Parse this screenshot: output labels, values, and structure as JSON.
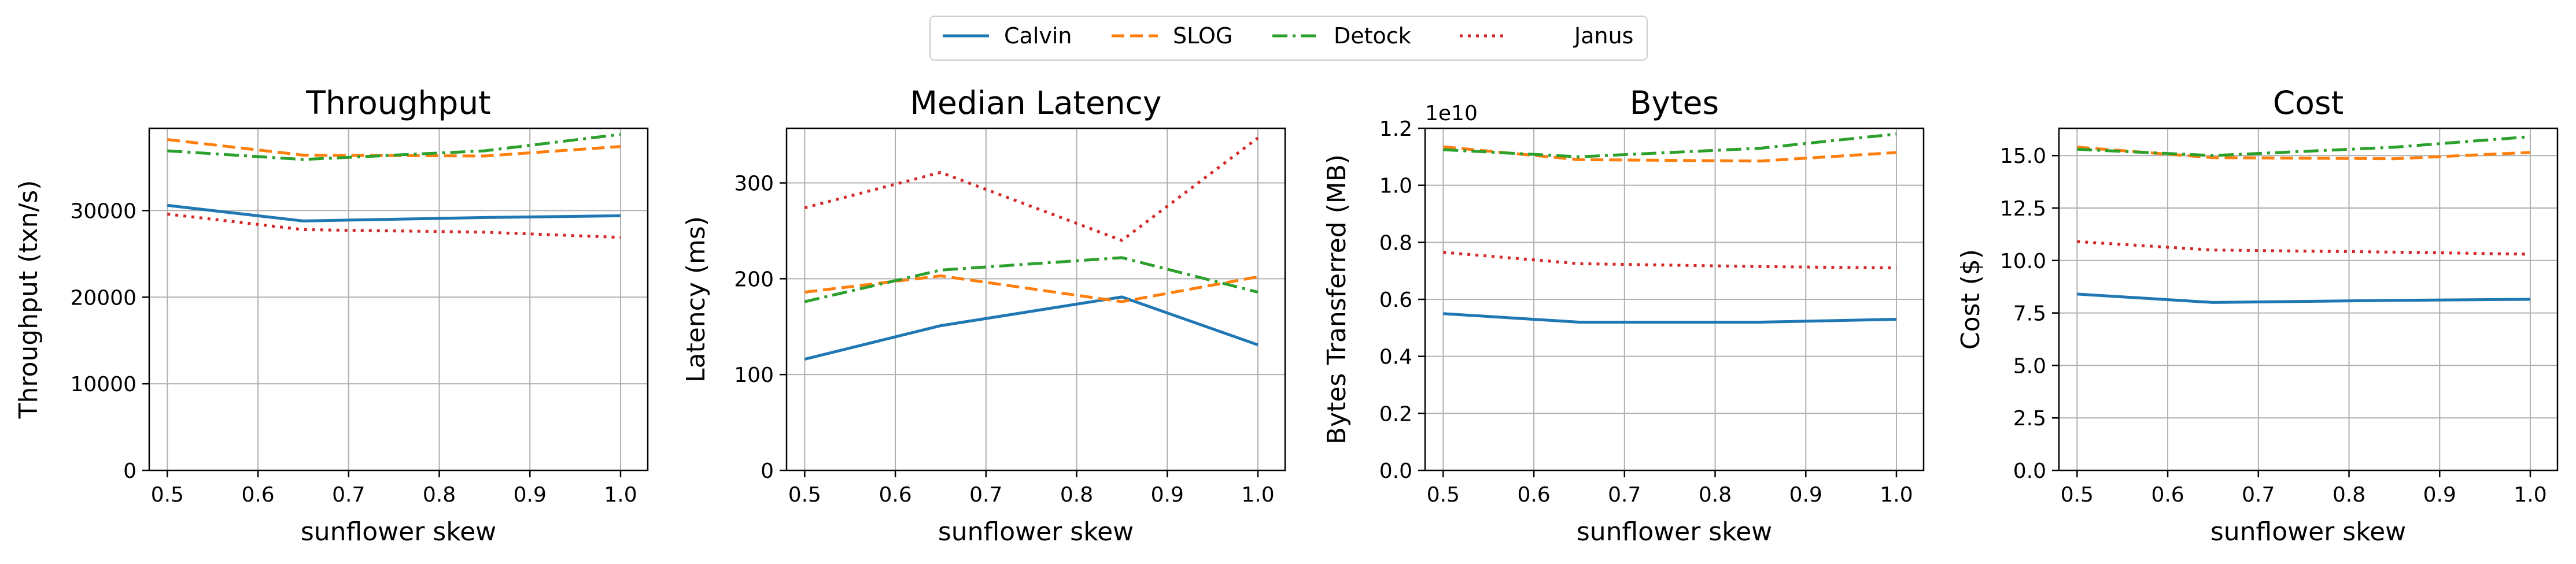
{
  "figure": {
    "legend": [
      {
        "name": "Calvin",
        "color": "#1f77b4",
        "dash": "solid"
      },
      {
        "name": "SLOG",
        "color": "#ff7f0e",
        "dash": "dashed"
      },
      {
        "name": "Detock",
        "color": "#2ca02c",
        "dash": "dashdot"
      },
      {
        "name": "Janus",
        "color": "#d62728",
        "dash": "dotted"
      }
    ]
  },
  "chart_data": [
    {
      "type": "line",
      "title": "Throughput",
      "xlabel": "sunflower skew",
      "ylabel": "Throughput (txn/s)",
      "xlim": [
        0.48,
        1.03
      ],
      "ylim": [
        0,
        39500
      ],
      "xticks": [
        0.5,
        0.6,
        0.7,
        0.8,
        0.9,
        1.0
      ],
      "xtick_labels": [
        "0.5",
        "0.6",
        "0.7",
        "0.8",
        "0.9",
        "1.0"
      ],
      "yticks": [
        0,
        10000,
        20000,
        30000
      ],
      "ytick_labels": [
        "0",
        "10000",
        "20000",
        "30000"
      ],
      "offset_text": "",
      "grid": true,
      "x": [
        0.5,
        0.65,
        0.85,
        1.0
      ],
      "series": [
        {
          "name": "Calvin",
          "values": [
            30600,
            28800,
            29200,
            29400
          ]
        },
        {
          "name": "SLOG",
          "values": [
            38200,
            36400,
            36300,
            37400
          ]
        },
        {
          "name": "Detock",
          "values": [
            36900,
            35900,
            36900,
            38800
          ]
        },
        {
          "name": "Janus",
          "values": [
            29600,
            27800,
            27500,
            26900
          ]
        }
      ]
    },
    {
      "type": "line",
      "title": "Median Latency",
      "xlabel": "sunflower skew",
      "ylabel": "Latency (ms)",
      "xlim": [
        0.48,
        1.03
      ],
      "ylim": [
        0,
        357
      ],
      "xticks": [
        0.5,
        0.6,
        0.7,
        0.8,
        0.9,
        1.0
      ],
      "xtick_labels": [
        "0.5",
        "0.6",
        "0.7",
        "0.8",
        "0.9",
        "1.0"
      ],
      "yticks": [
        0,
        100,
        200,
        300
      ],
      "ytick_labels": [
        "0",
        "100",
        "200",
        "300"
      ],
      "offset_text": "",
      "grid": true,
      "x": [
        0.5,
        0.65,
        0.85,
        1.0
      ],
      "series": [
        {
          "name": "Calvin",
          "values": [
            116,
            151,
            181,
            131
          ]
        },
        {
          "name": "SLOG",
          "values": [
            186,
            203,
            176,
            202
          ]
        },
        {
          "name": "Detock",
          "values": [
            176,
            209,
            222,
            186
          ]
        },
        {
          "name": "Janus",
          "values": [
            274,
            311,
            240,
            347
          ]
        }
      ]
    },
    {
      "type": "line",
      "title": "Bytes",
      "xlabel": "sunflower skew",
      "ylabel": "Bytes Transferred (MB)",
      "xlim": [
        0.48,
        1.03
      ],
      "ylim": [
        0,
        1.2
      ],
      "xticks": [
        0.5,
        0.6,
        0.7,
        0.8,
        0.9,
        1.0
      ],
      "xtick_labels": [
        "0.5",
        "0.6",
        "0.7",
        "0.8",
        "0.9",
        "1.0"
      ],
      "yticks": [
        0,
        0.2,
        0.4,
        0.6,
        0.8,
        1.0,
        1.2
      ],
      "ytick_labels": [
        "0.0",
        "0.2",
        "0.4",
        "0.6",
        "0.8",
        "1.0",
        "1.2"
      ],
      "offset_text": "1e10",
      "grid": true,
      "x": [
        0.5,
        0.65,
        0.85,
        1.0
      ],
      "series": [
        {
          "name": "Calvin",
          "values": [
            0.55,
            0.52,
            0.52,
            0.53
          ]
        },
        {
          "name": "SLOG",
          "values": [
            1.135,
            1.09,
            1.085,
            1.115
          ]
        },
        {
          "name": "Detock",
          "values": [
            1.125,
            1.1,
            1.13,
            1.18
          ]
        },
        {
          "name": "Janus",
          "values": [
            0.765,
            0.725,
            0.715,
            0.71
          ]
        }
      ]
    },
    {
      "type": "line",
      "title": "Cost",
      "xlabel": "sunflower skew",
      "ylabel": "Cost ($)",
      "xlim": [
        0.48,
        1.03
      ],
      "ylim": [
        0,
        16.3
      ],
      "xticks": [
        0.5,
        0.6,
        0.7,
        0.8,
        0.9,
        1.0
      ],
      "xtick_labels": [
        "0.5",
        "0.6",
        "0.7",
        "0.8",
        "0.9",
        "1.0"
      ],
      "yticks": [
        0,
        2.5,
        5.0,
        7.5,
        10.0,
        12.5,
        15.0
      ],
      "ytick_labels": [
        "0.0",
        "2.5",
        "5.0",
        "7.5",
        "10.0",
        "12.5",
        "15.0"
      ],
      "offset_text": "",
      "grid": true,
      "x": [
        0.5,
        0.65,
        0.85,
        1.0
      ],
      "series": [
        {
          "name": "Calvin",
          "values": [
            8.4,
            8.0,
            8.1,
            8.15
          ]
        },
        {
          "name": "SLOG",
          "values": [
            15.4,
            14.9,
            14.85,
            15.15
          ]
        },
        {
          "name": "Detock",
          "values": [
            15.3,
            15.0,
            15.4,
            15.9
          ]
        },
        {
          "name": "Janus",
          "values": [
            10.9,
            10.5,
            10.4,
            10.3
          ]
        }
      ]
    }
  ]
}
